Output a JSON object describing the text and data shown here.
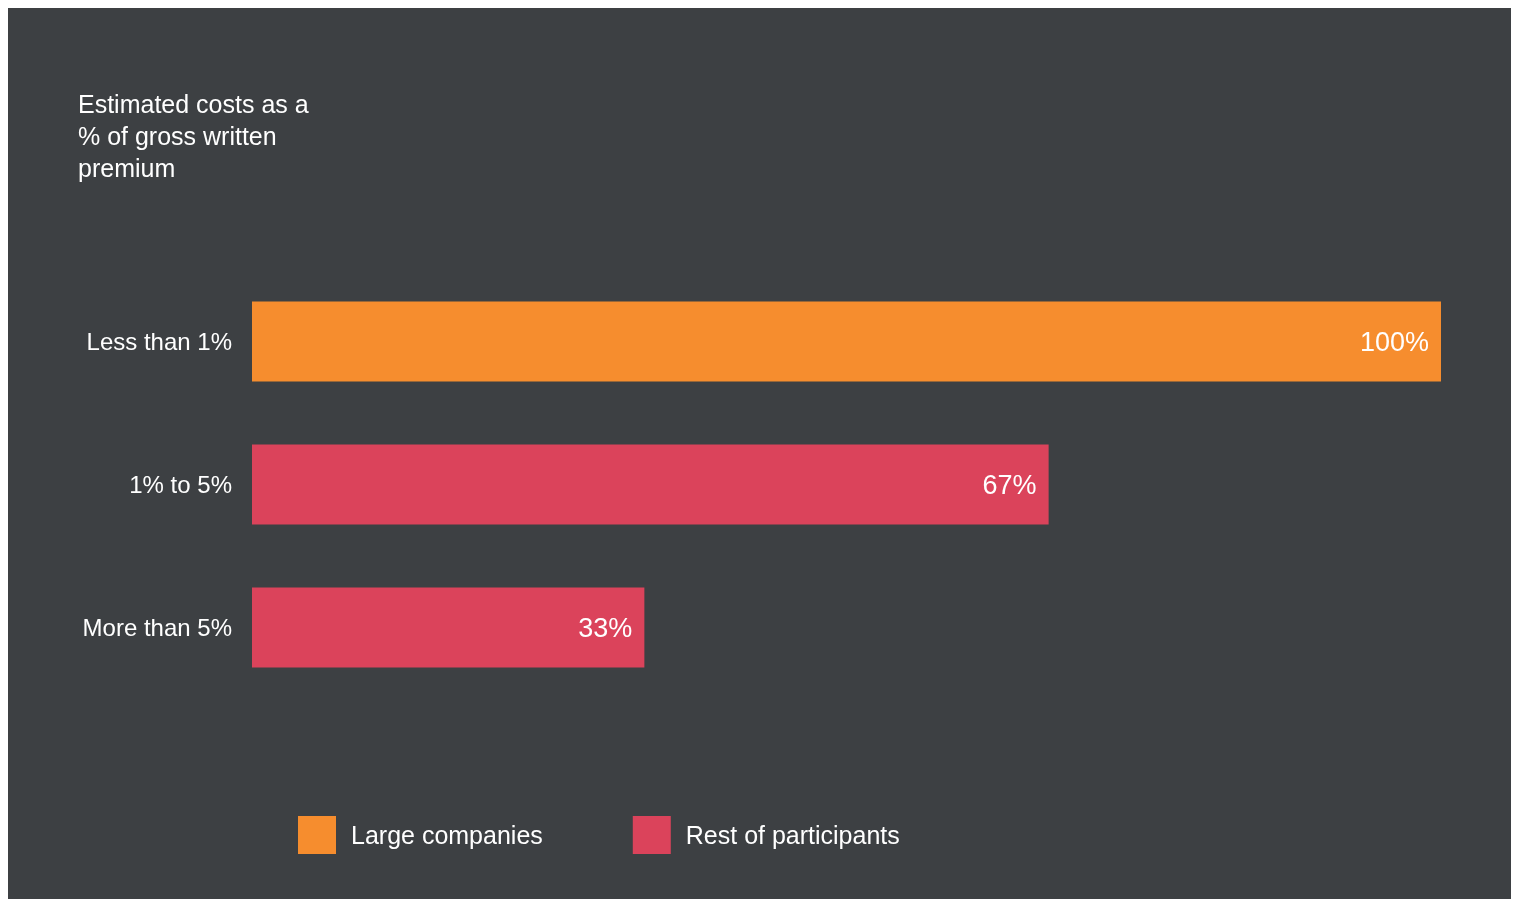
{
  "chart_data": {
    "type": "bar",
    "orientation": "horizontal",
    "title": "Estimated costs as a % of gross written premium",
    "categories": [
      "Less than 1%",
      "1% to 5%",
      "More than 5%"
    ],
    "series": [
      {
        "name": "Large companies",
        "color": "#f68d2e",
        "values": [
          100,
          null,
          null
        ],
        "value_labels": [
          "100%",
          null,
          null
        ]
      },
      {
        "name": "Rest of participants",
        "color": "#db435b",
        "values": [
          null,
          67,
          33
        ],
        "value_labels": [
          null,
          "67%",
          "33%"
        ]
      }
    ],
    "legend": "bottom"
  }
}
